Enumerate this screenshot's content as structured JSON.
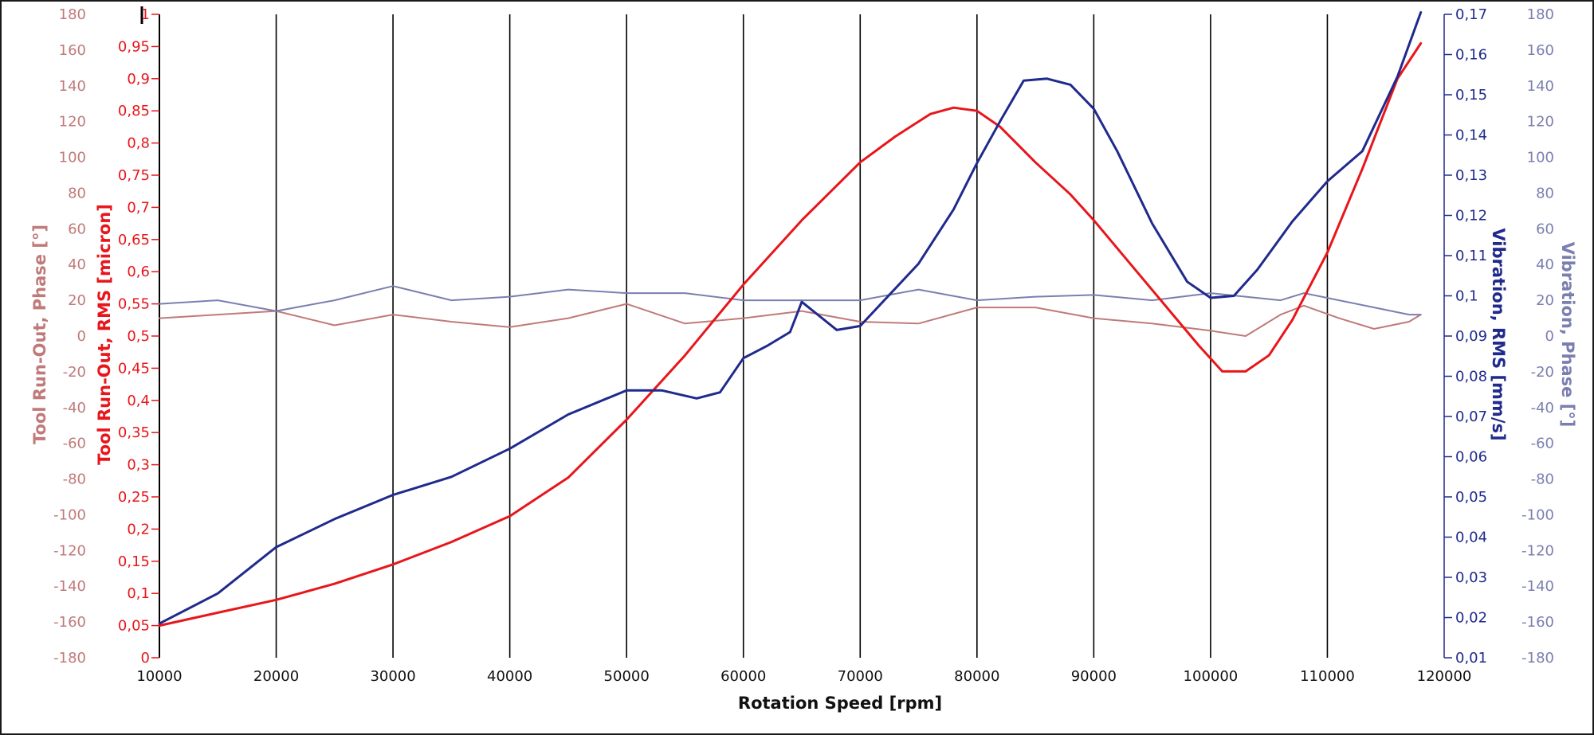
{
  "chart_data": {
    "type": "line",
    "title": "",
    "xlabel": "Rotation Speed [rpm]",
    "xlim": [
      10000,
      120000
    ],
    "x_ticks": [
      "10000",
      "20000",
      "30000",
      "40000",
      "50000",
      "60000",
      "70000",
      "80000",
      "90000",
      "100000",
      "110000",
      "120000"
    ],
    "grid": "vertical",
    "axes": {
      "phase_left": {
        "label": "Tool Run-Out, Phase [°]",
        "range": [
          -180,
          180
        ],
        "ticks": [
          "180",
          "160",
          "140",
          "120",
          "100",
          "80",
          "60",
          "40",
          "20",
          "0",
          "-20",
          "-40",
          "-60",
          "-80",
          "-100",
          "-120",
          "-140",
          "-160",
          "-180"
        ],
        "color": "#c07a7a"
      },
      "runout_rms": {
        "label": "Tool Run-Out, RMS [micron]",
        "range": [
          0,
          1
        ],
        "ticks": [
          "1",
          "0,95",
          "0,9",
          "0,85",
          "0,8",
          "0,75",
          "0,7",
          "0,65",
          "0,6",
          "0,55",
          "0,5",
          "0,45",
          "0,4",
          "0,35",
          "0,3",
          "0,25",
          "0,2",
          "0,15",
          "0,1",
          "0,05",
          "0"
        ],
        "color": "#e8161b"
      },
      "vibration_rms": {
        "label": "Vibration, RMS [mm/s]",
        "range": [
          0.01,
          0.17
        ],
        "ticks": [
          "0,17",
          "0,16",
          "0,15",
          "0,14",
          "0,13",
          "0,12",
          "0,11",
          "0,1",
          "0,09",
          "0,08",
          "0,07",
          "0,06",
          "0,05",
          "0,04",
          "0,03",
          "0,02",
          "0,01"
        ],
        "color": "#1f2a8c"
      },
      "phase_right": {
        "label": "Vibration, Phase [°]",
        "range": [
          -180,
          180
        ],
        "ticks": [
          "180",
          "160",
          "140",
          "120",
          "100",
          "80",
          "60",
          "40",
          "20",
          "0",
          "-20",
          "-40",
          "-60",
          "-80",
          "-100",
          "-120",
          "-140",
          "-160",
          "-180"
        ],
        "color": "#7b7fb0"
      }
    },
    "series": [
      {
        "axis": "runout_rms",
        "color": "#e8161b",
        "x": [
          10000,
          15000,
          20000,
          25000,
          30000,
          35000,
          40000,
          45000,
          50000,
          55000,
          60000,
          65000,
          70000,
          73000,
          76000,
          78000,
          80000,
          82000,
          85000,
          88000,
          90000,
          93000,
          96000,
          99000,
          101000,
          103000,
          105000,
          107000,
          110000,
          113000,
          116000,
          118000
        ],
        "y": [
          0.05,
          0.07,
          0.09,
          0.115,
          0.145,
          0.18,
          0.22,
          0.28,
          0.37,
          0.47,
          0.58,
          0.68,
          0.77,
          0.81,
          0.845,
          0.855,
          0.85,
          0.825,
          0.77,
          0.72,
          0.68,
          0.615,
          0.55,
          0.485,
          0.445,
          0.445,
          0.47,
          0.525,
          0.63,
          0.76,
          0.9,
          0.955
        ]
      },
      {
        "axis": "vibration_rms",
        "color": "#1f2a8c",
        "x": [
          10000,
          15000,
          20000,
          25000,
          30000,
          35000,
          40000,
          45000,
          50000,
          53000,
          56000,
          58000,
          60000,
          62000,
          64000,
          65000,
          68000,
          70000,
          75000,
          78000,
          80000,
          82000,
          84000,
          86000,
          88000,
          90000,
          92000,
          95000,
          98000,
          100000,
          102000,
          104000,
          107000,
          110000,
          113000,
          116000,
          118000
        ],
        "y": [
          0.0185,
          0.026,
          0.0375,
          0.0445,
          0.0505,
          0.055,
          0.062,
          0.0705,
          0.0765,
          0.0765,
          0.0745,
          0.076,
          0.0845,
          0.0875,
          0.091,
          0.0985,
          0.0915,
          0.0925,
          0.108,
          0.1215,
          0.133,
          0.1435,
          0.1535,
          0.154,
          0.1525,
          0.1465,
          0.136,
          0.118,
          0.1035,
          0.0995,
          0.1,
          0.1065,
          0.1185,
          0.1285,
          0.136,
          0.1545,
          0.1705
        ]
      },
      {
        "axis": "phase_left",
        "color": "#c07a7a",
        "x": [
          10000,
          15000,
          20000,
          25000,
          30000,
          35000,
          40000,
          45000,
          50000,
          55000,
          60000,
          65000,
          70000,
          75000,
          80000,
          85000,
          90000,
          95000,
          100000,
          103000,
          106000,
          108000,
          111000,
          114000,
          117000,
          118000
        ],
        "y": [
          10,
          12,
          14,
          6,
          12,
          8,
          5,
          10,
          18,
          7,
          10,
          14,
          8,
          7,
          16,
          16,
          10,
          7,
          3,
          0,
          12,
          17,
          10,
          4,
          8,
          12
        ]
      },
      {
        "axis": "phase_right",
        "color": "#7b7fb0",
        "x": [
          10000,
          15000,
          20000,
          25000,
          30000,
          35000,
          40000,
          45000,
          50000,
          55000,
          60000,
          65000,
          70000,
          75000,
          80000,
          85000,
          90000,
          95000,
          100000,
          103000,
          106000,
          108000,
          111000,
          114000,
          117000,
          118000
        ],
        "y": [
          18,
          20,
          14,
          20,
          28,
          20,
          22,
          26,
          24,
          24,
          20,
          20,
          20,
          26,
          20,
          22,
          23,
          20,
          24,
          22,
          20,
          24,
          20,
          16,
          12,
          12
        ]
      }
    ]
  }
}
